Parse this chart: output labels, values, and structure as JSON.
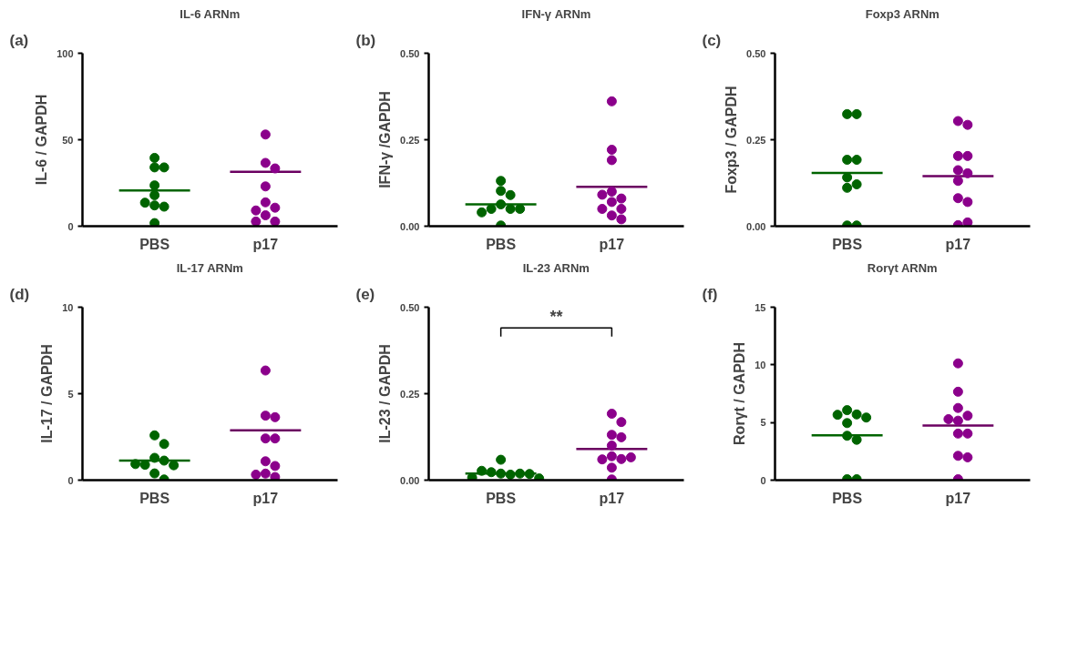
{
  "chart_data": [
    {
      "type": "scatter",
      "title": "IL-6 ARNm",
      "ylabel": "IL-6 / GAPDH",
      "categories": [
        "PBS",
        "p17"
      ],
      "ylim": [
        0,
        100
      ],
      "yticks": [
        0,
        50,
        100
      ],
      "grid": false,
      "marker": "circle",
      "annotations": [
        "(a)"
      ],
      "series": [
        {
          "color": "#006400",
          "x": [
            "PBS",
            "PBS",
            "PBS",
            "PBS",
            "PBS",
            "PBS",
            "PBS",
            "PBS",
            "PBS"
          ],
          "values": [
            39.5,
            34,
            34,
            23.6,
            17.9,
            12,
            11.3,
            13.6,
            1.8
          ]
        },
        {
          "color": "#8b008b",
          "x": [
            "p17",
            "p17",
            "p17",
            "p17",
            "p17",
            "p17",
            "p17",
            "p17",
            "p17",
            "p17"
          ],
          "values": [
            53,
            36.6,
            33.4,
            23,
            13.8,
            10.7,
            9.1,
            6.3,
            2.7,
            2.7
          ]
        }
      ],
      "ref_lines": [
        {
          "axis": "y",
          "value": 20.7,
          "color": "#006400"
        },
        {
          "axis": "y",
          "value": 31.4,
          "color": "#6b0061"
        }
      ]
    },
    {
      "type": "scatter",
      "title": "IFN-γ ARNm",
      "ylabel": "IFN-γ /GAPDH",
      "categories": [
        "PBS",
        "p17"
      ],
      "ylim": [
        0,
        0.5
      ],
      "yticks": [
        {
          "value": 0,
          "label": "0.00"
        },
        {
          "value": 0.25,
          "label": "0.25"
        },
        {
          "value": 0.5,
          "label": "0.50"
        }
      ],
      "grid": false,
      "marker": "circle",
      "annotations": [
        "(b)"
      ],
      "series": [
        {
          "color": "#006400",
          "x": [
            "PBS",
            "PBS",
            "PBS",
            "PBS",
            "PBS",
            "PBS",
            "PBS",
            "PBS",
            "PBS"
          ],
          "values": [
            0.131,
            0.102,
            0.09,
            0.063,
            0.05,
            0.05,
            0.05,
            0.04,
            0.002
          ]
        },
        {
          "color": "#8b008b",
          "x": [
            "p17",
            "p17",
            "p17",
            "p17",
            "p17",
            "p17",
            "p17",
            "p17",
            "p17",
            "p17",
            "p17"
          ],
          "values": [
            0.361,
            0.221,
            0.191,
            0.1,
            0.08,
            0.091,
            0.07,
            0.05,
            0.05,
            0.031,
            0.02
          ]
        }
      ],
      "ref_lines": [
        {
          "axis": "y",
          "value": 0.063,
          "color": "#006400"
        },
        {
          "axis": "y",
          "value": 0.114,
          "color": "#6b0061"
        }
      ]
    },
    {
      "type": "scatter",
      "title": "Foxp3 ARNm",
      "ylabel": "Foxp3 / GAPDH",
      "categories": [
        "PBS",
        "p17"
      ],
      "ylim": [
        0,
        0.5
      ],
      "yticks": [
        {
          "value": 0,
          "label": "0.00"
        },
        {
          "value": 0.25,
          "label": "0.25"
        },
        {
          "value": 0.5,
          "label": "0.50"
        }
      ],
      "grid": false,
      "marker": "circle",
      "annotations": [
        "(c)"
      ],
      "series": [
        {
          "color": "#006400",
          "x": [
            "PBS",
            "PBS",
            "PBS",
            "PBS",
            "PBS",
            "PBS",
            "PBS",
            "PBS",
            "PBS"
          ],
          "values": [
            0.324,
            0.324,
            0.192,
            0.192,
            0.141,
            0.121,
            0.111,
            0.002,
            0.002
          ]
        },
        {
          "color": "#8b008b",
          "x": [
            "p17",
            "p17",
            "p17",
            "p17",
            "p17",
            "p17",
            "p17",
            "p17",
            "p17",
            "p17",
            "p17"
          ],
          "values": [
            0.304,
            0.293,
            0.203,
            0.203,
            0.162,
            0.153,
            0.131,
            0.081,
            0.07,
            0.003,
            0.011
          ]
        }
      ],
      "ref_lines": [
        {
          "axis": "y",
          "value": 0.154,
          "color": "#006400"
        },
        {
          "axis": "y",
          "value": 0.145,
          "color": "#6b0061"
        }
      ]
    },
    {
      "type": "scatter",
      "title": "IL-17 ARNm",
      "ylabel": "IL-17 / GAPDH",
      "categories": [
        "PBS",
        "p17"
      ],
      "ylim": [
        0,
        10
      ],
      "yticks": [
        0,
        5,
        10
      ],
      "grid": false,
      "marker": "circle",
      "annotations": [
        "(d)"
      ],
      "series": [
        {
          "color": "#006400",
          "x": [
            "PBS",
            "PBS",
            "PBS",
            "PBS",
            "PBS",
            "PBS",
            "PBS",
            "PBS",
            "PBS"
          ],
          "values": [
            2.59,
            2.09,
            1.29,
            1.13,
            0.89,
            0.86,
            0.93,
            0.39,
            0.04
          ]
        },
        {
          "color": "#8b008b",
          "x": [
            "p17",
            "p17",
            "p17",
            "p17",
            "p17",
            "p17",
            "p17",
            "p17",
            "p17",
            "p17"
          ],
          "values": [
            6.34,
            3.73,
            3.64,
            2.41,
            2.41,
            1.09,
            0.82,
            0.38,
            0.18,
            0.32
          ]
        }
      ],
      "ref_lines": [
        {
          "axis": "y",
          "value": 1.13,
          "color": "#006400"
        },
        {
          "axis": "y",
          "value": 2.88,
          "color": "#6b0061"
        }
      ]
    },
    {
      "type": "scatter",
      "title": "IL-23 ARNm",
      "ylabel": "IL-23 / GAPDH",
      "categories": [
        "PBS",
        "p17"
      ],
      "ylim": [
        0,
        0.5
      ],
      "yticks": [
        {
          "value": 0,
          "label": "0.00"
        },
        {
          "value": 0.25,
          "label": "0.25"
        },
        {
          "value": 0.5,
          "label": "0.50"
        }
      ],
      "grid": false,
      "marker": "circle",
      "annotations": [
        "(e)",
        "**"
      ],
      "series": [
        {
          "color": "#006400",
          "x": [
            "PBS",
            "PBS",
            "PBS",
            "PBS",
            "PBS",
            "PBS",
            "PBS",
            "PBS",
            "PBS"
          ],
          "values": [
            0.059,
            0.019,
            0.016,
            0.023,
            0.019,
            0.027,
            0.018,
            0.007,
            0.005
          ]
        },
        {
          "color": "#8b008b",
          "x": [
            "p17",
            "p17",
            "p17",
            "p17",
            "p17",
            "p17",
            "p17",
            "p17",
            "p17",
            "p17",
            "p17"
          ],
          "values": [
            0.192,
            0.168,
            0.131,
            0.124,
            0.1,
            0.069,
            0.061,
            0.06,
            0.066,
            0.036,
            0.002
          ]
        }
      ],
      "ref_lines": [
        {
          "axis": "y",
          "value": 0.019,
          "color": "#006400"
        },
        {
          "axis": "y",
          "value": 0.09,
          "color": "#6b0061"
        }
      ]
    },
    {
      "type": "scatter",
      "title": "Rorγt ARNm",
      "ylabel": "Rorγt / GAPDH",
      "categories": [
        "PBS",
        "p17"
      ],
      "ylim": [
        0,
        15
      ],
      "yticks": [
        0,
        5,
        10,
        15
      ],
      "grid": false,
      "marker": "circle",
      "annotations": [
        "(f)"
      ],
      "series": [
        {
          "color": "#006400",
          "x": [
            "PBS",
            "PBS",
            "PBS",
            "PBS",
            "PBS",
            "PBS",
            "PBS",
            "PBS",
            "PBS"
          ],
          "values": [
            6.07,
            5.7,
            5.67,
            5.43,
            4.95,
            3.85,
            3.5,
            0.08,
            0.08
          ]
        },
        {
          "color": "#8b008b",
          "x": [
            "p17",
            "p17",
            "p17",
            "p17",
            "p17",
            "p17",
            "p17",
            "p17",
            "p17",
            "p17",
            "p17"
          ],
          "values": [
            10.13,
            7.67,
            6.26,
            5.59,
            5.16,
            5.29,
            4.04,
            4.04,
            2.11,
            1.98,
            0.08
          ]
        }
      ],
      "ref_lines": [
        {
          "axis": "y",
          "value": 3.88,
          "color": "#006400"
        },
        {
          "axis": "y",
          "value": 4.73,
          "color": "#6b0061"
        }
      ]
    }
  ]
}
